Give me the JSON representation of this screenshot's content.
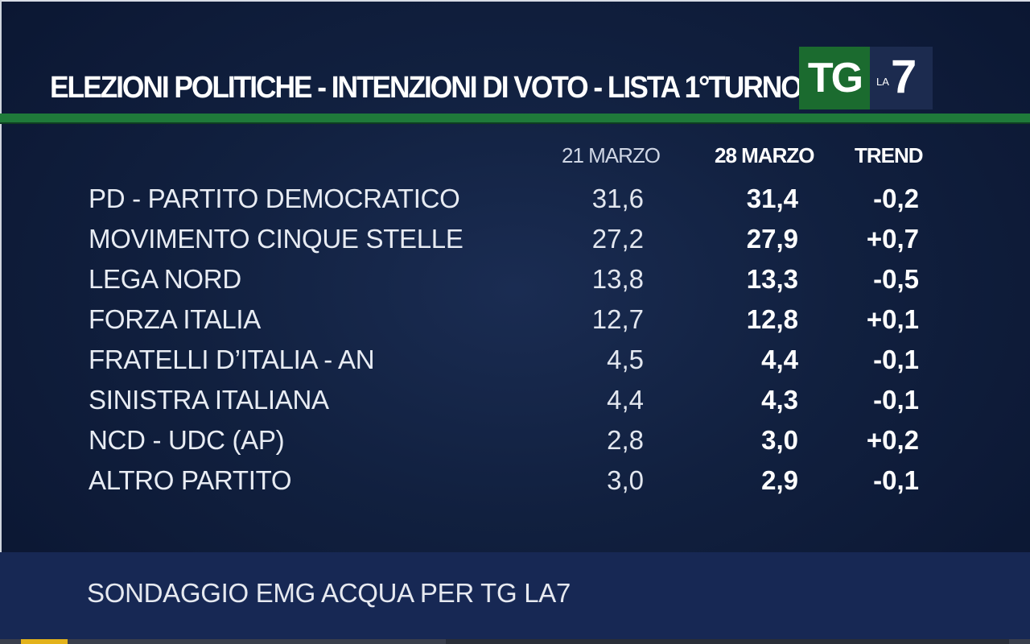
{
  "header": {
    "title": "ELEZIONI POLITICHE - INTENZIONI DI VOTO - LISTA 1°TURNO",
    "logo_tg": "TG",
    "logo_la": "LA",
    "logo_seven": "7"
  },
  "chart_data": {
    "type": "table",
    "columns": [
      "21 MARZO",
      "28 MARZO",
      "TREND"
    ],
    "rows": [
      {
        "party": "PD - PARTITO DEMOCRATICO",
        "v1": "31,6",
        "v2": "31,4",
        "trend": "-0,2"
      },
      {
        "party": "MOVIMENTO CINQUE STELLE",
        "v1": "27,2",
        "v2": "27,9",
        "trend": "+0,7"
      },
      {
        "party": "LEGA NORD",
        "v1": "13,8",
        "v2": "13,3",
        "trend": "-0,5"
      },
      {
        "party": "FORZA ITALIA",
        "v1": "12,7",
        "v2": "12,8",
        "trend": "+0,1"
      },
      {
        "party": "FRATELLI D’ITALIA - AN",
        "v1": "4,5",
        "v2": "4,4",
        "trend": "-0,1"
      },
      {
        "party": "SINISTRA ITALIANA",
        "v1": "4,4",
        "v2": "4,3",
        "trend": "-0,1"
      },
      {
        "party": "NCD - UDC (AP)",
        "v1": "2,8",
        "v2": "3,0",
        "trend": "+0,2"
      },
      {
        "party": "ALTRO PARTITO",
        "v1": "3,0",
        "v2": "2,9",
        "trend": "-0,1"
      }
    ]
  },
  "footer": {
    "source": "SONDAGGIO EMG ACQUA PER TG LA7"
  },
  "colors": {
    "background": "#11203f",
    "accent_green": "#1f7a3a",
    "logo_green": "#1b6b2f",
    "footer_bar": "#172854"
  }
}
